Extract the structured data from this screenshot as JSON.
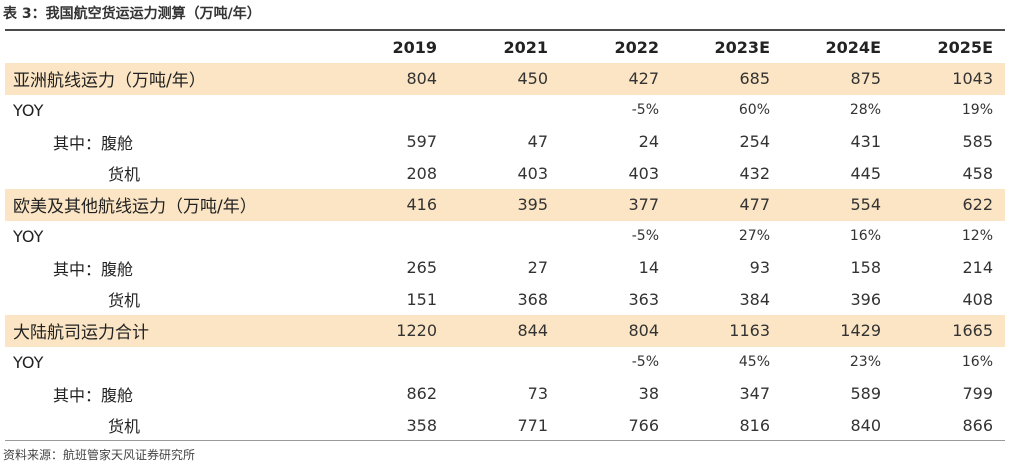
{
  "title": "表 3：我国航空货运运力测算（万吨/年）",
  "header": [
    "",
    "2019",
    "2021",
    "2022",
    "2023E",
    "2024E",
    "2025E"
  ],
  "rows": [
    {
      "label": "亚洲航线运力（万吨/年）",
      "values": [
        "804",
        "450",
        "427",
        "685",
        "875",
        "1043"
      ],
      "style": "main"
    },
    {
      "label": "YOY",
      "values": [
        "",
        "",
        "-5%",
        "60%",
        "28%",
        "19%"
      ],
      "style": "yoy"
    },
    {
      "label": "其中：腹舱",
      "values": [
        "597",
        "47",
        "24",
        "254",
        "431",
        "585"
      ],
      "style": "sub1"
    },
    {
      "label": "货机",
      "values": [
        "208",
        "403",
        "403",
        "432",
        "445",
        "458"
      ],
      "style": "sub2"
    },
    {
      "label": "欧美及其他航线运力（万吨/年）",
      "values": [
        "416",
        "395",
        "377",
        "477",
        "554",
        "622"
      ],
      "style": "main"
    },
    {
      "label": "YOY",
      "values": [
        "",
        "",
        "-5%",
        "27%",
        "16%",
        "12%"
      ],
      "style": "yoy"
    },
    {
      "label": "其中：腹舱",
      "values": [
        "265",
        "27",
        "14",
        "93",
        "158",
        "214"
      ],
      "style": "sub1"
    },
    {
      "label": "货机",
      "values": [
        "151",
        "368",
        "363",
        "384",
        "396",
        "408"
      ],
      "style": "sub2"
    },
    {
      "label": "大陆航司运力合计",
      "values": [
        "1220",
        "844",
        "804",
        "1163",
        "1429",
        "1665"
      ],
      "style": "main"
    },
    {
      "label": "YOY",
      "values": [
        "",
        "",
        "-5%",
        "45%",
        "23%",
        "16%"
      ],
      "style": "yoy"
    },
    {
      "label": "其中：腹舱",
      "values": [
        "862",
        "73",
        "38",
        "347",
        "589",
        "799"
      ],
      "style": "sub1"
    },
    {
      "label": "货机",
      "values": [
        "358",
        "771",
        "766",
        "816",
        "840",
        "866"
      ],
      "style": "sub2"
    }
  ],
  "source": "资料来源：航班管家天风证券研究所",
  "colors": {
    "highlight_row": "#fbe5c4",
    "rule_line": "#4a4a4a"
  }
}
